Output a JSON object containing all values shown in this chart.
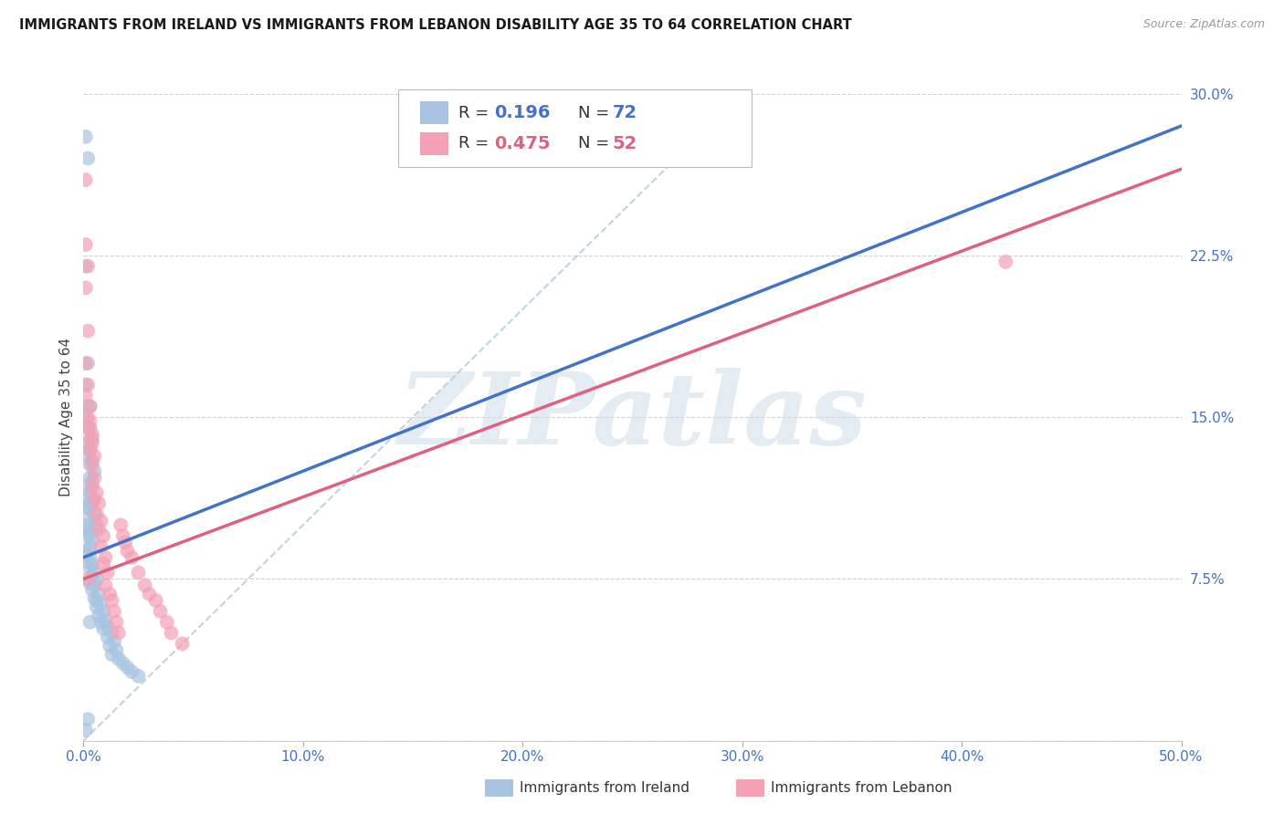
{
  "title": "IMMIGRANTS FROM IRELAND VS IMMIGRANTS FROM LEBANON DISABILITY AGE 35 TO 64 CORRELATION CHART",
  "source": "Source: ZipAtlas.com",
  "ylabel": "Disability Age 35 to 64",
  "xlim": [
    0.0,
    0.5
  ],
  "ylim": [
    0.0,
    0.3
  ],
  "xticks": [
    0.0,
    0.1,
    0.2,
    0.3,
    0.4,
    0.5
  ],
  "xtick_labels": [
    "0.0%",
    "10.0%",
    "20.0%",
    "30.0%",
    "40.0%",
    "50.0%"
  ],
  "yticks": [
    0.0,
    0.075,
    0.15,
    0.225,
    0.3
  ],
  "ytick_labels": [
    "",
    "7.5%",
    "15.0%",
    "22.5%",
    "30.0%"
  ],
  "ireland_color": "#a8c4e0",
  "lebanon_color": "#f4a0b5",
  "ireland_line_color": "#4472c4",
  "lebanon_line_color": "#e06080",
  "ref_line_color": "#b8ccd8",
  "background_color": "#ffffff",
  "watermark": "ZIPatlas",
  "watermark_color": "#ccdde8",
  "legend_R_color": "#4472c4",
  "legend_N_color": "#4472c4",
  "legend_R2_color": "#e06080",
  "legend_N2_color": "#e06080",
  "ireland_x": [
    0.001,
    0.002,
    0.003,
    0.001,
    0.002,
    0.001,
    0.003,
    0.002,
    0.001,
    0.003,
    0.002,
    0.004,
    0.002,
    0.003,
    0.001,
    0.004,
    0.003,
    0.005,
    0.003,
    0.004,
    0.002,
    0.003,
    0.001,
    0.004,
    0.002,
    0.005,
    0.003,
    0.006,
    0.002,
    0.001,
    0.003,
    0.002,
    0.004,
    0.001,
    0.003,
    0.002,
    0.001,
    0.003,
    0.002,
    0.004,
    0.003,
    0.005,
    0.004,
    0.006,
    0.003,
    0.005,
    0.004,
    0.007,
    0.005,
    0.006,
    0.008,
    0.006,
    0.009,
    0.007,
    0.01,
    0.008,
    0.011,
    0.009,
    0.013,
    0.011,
    0.014,
    0.012,
    0.015,
    0.013,
    0.016,
    0.018,
    0.02,
    0.022,
    0.025,
    0.002,
    0.001,
    0.003
  ],
  "ireland_y": [
    0.28,
    0.27,
    0.11,
    0.22,
    0.175,
    0.165,
    0.155,
    0.155,
    0.15,
    0.145,
    0.145,
    0.14,
    0.138,
    0.135,
    0.132,
    0.13,
    0.128,
    0.125,
    0.122,
    0.12,
    0.118,
    0.115,
    0.112,
    0.11,
    0.108,
    0.105,
    0.103,
    0.1,
    0.1,
    0.098,
    0.096,
    0.095,
    0.093,
    0.108,
    0.09,
    0.088,
    0.086,
    0.085,
    0.083,
    0.082,
    0.08,
    0.078,
    0.076,
    0.075,
    0.073,
    0.072,
    0.07,
    0.068,
    0.066,
    0.065,
    0.063,
    0.062,
    0.06,
    0.058,
    0.056,
    0.055,
    0.053,
    0.052,
    0.05,
    0.048,
    0.046,
    0.044,
    0.042,
    0.04,
    0.038,
    0.036,
    0.034,
    0.032,
    0.03,
    0.01,
    0.005,
    0.055
  ],
  "lebanon_x": [
    0.001,
    0.001,
    0.002,
    0.001,
    0.002,
    0.001,
    0.002,
    0.001,
    0.003,
    0.002,
    0.003,
    0.002,
    0.004,
    0.003,
    0.004,
    0.003,
    0.005,
    0.004,
    0.005,
    0.004,
    0.006,
    0.005,
    0.007,
    0.006,
    0.008,
    0.007,
    0.009,
    0.008,
    0.01,
    0.009,
    0.011,
    0.01,
    0.012,
    0.013,
    0.014,
    0.015,
    0.016,
    0.017,
    0.018,
    0.019,
    0.02,
    0.022,
    0.025,
    0.028,
    0.03,
    0.033,
    0.035,
    0.038,
    0.04,
    0.045,
    0.42,
    0.002
  ],
  "lebanon_y": [
    0.26,
    0.23,
    0.22,
    0.21,
    0.19,
    0.175,
    0.165,
    0.16,
    0.155,
    0.15,
    0.148,
    0.145,
    0.142,
    0.14,
    0.138,
    0.135,
    0.132,
    0.128,
    0.122,
    0.118,
    0.115,
    0.112,
    0.11,
    0.105,
    0.102,
    0.098,
    0.095,
    0.09,
    0.085,
    0.082,
    0.078,
    0.072,
    0.068,
    0.065,
    0.06,
    0.055,
    0.05,
    0.1,
    0.095,
    0.092,
    0.088,
    0.085,
    0.078,
    0.072,
    0.068,
    0.065,
    0.06,
    0.055,
    0.05,
    0.045,
    0.222,
    0.075
  ],
  "ireland_line_x0": 0.0,
  "ireland_line_x1": 0.5,
  "ireland_line_y0": 0.085,
  "ireland_line_y1": 0.285,
  "lebanon_line_x0": 0.0,
  "lebanon_line_x1": 0.5,
  "lebanon_line_y0": 0.075,
  "lebanon_line_y1": 0.265
}
